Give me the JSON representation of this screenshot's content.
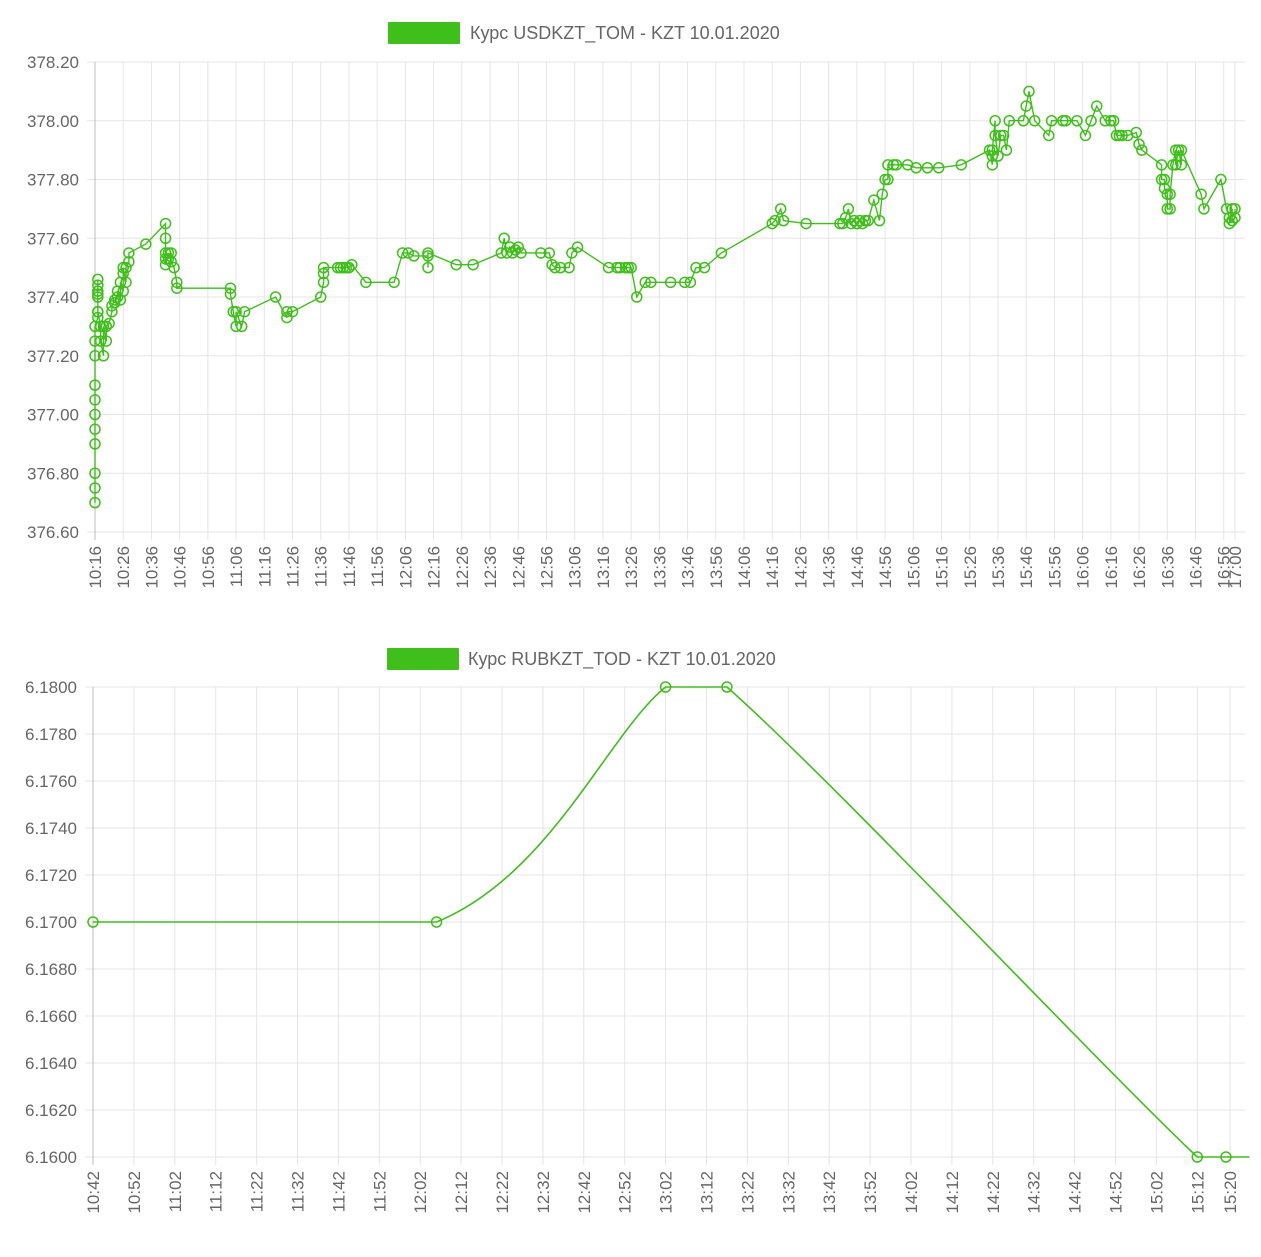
{
  "colors": {
    "series": "#3fbf1a",
    "grid": "#e5e5e5",
    "text": "#666666"
  },
  "chart_data": [
    {
      "type": "line",
      "legend_position": "top-center",
      "grid": true,
      "series": [
        {
          "name": "Курс USDKZT_TOM - KZT 10.01.2020"
        }
      ],
      "ylim": [
        376.6,
        378.2
      ],
      "y_ticks": [
        "378.20",
        "378.00",
        "377.80",
        "377.60",
        "377.40",
        "377.20",
        "377.00",
        "376.80",
        "376.60"
      ],
      "x_ticks": [
        "10:16",
        "10:26",
        "10:36",
        "10:46",
        "10:56",
        "11:06",
        "11:16",
        "11:26",
        "11:36",
        "11:46",
        "11:56",
        "12:06",
        "12:16",
        "12:26",
        "12:36",
        "12:46",
        "12:56",
        "13:06",
        "13:16",
        "13:26",
        "13:36",
        "13:46",
        "13:56",
        "14:06",
        "14:16",
        "14:26",
        "14:36",
        "14:46",
        "14:56",
        "15:06",
        "15:16",
        "15:26",
        "15:36",
        "15:46",
        "15:56",
        "16:06",
        "16:16",
        "16:26",
        "16:36",
        "16:46",
        "16:56",
        "17:00"
      ],
      "points": [
        [
          "10:16",
          376.7
        ],
        [
          "10:16",
          376.75
        ],
        [
          "10:16",
          376.8
        ],
        [
          "10:16",
          376.9
        ],
        [
          "10:16",
          376.95
        ],
        [
          "10:16",
          377.0
        ],
        [
          "10:16",
          377.05
        ],
        [
          "10:16",
          377.1
        ],
        [
          "10:16",
          377.2
        ],
        [
          "10:16",
          377.25
        ],
        [
          "10:16",
          377.3
        ],
        [
          "10:17",
          377.33
        ],
        [
          "10:17",
          377.35
        ],
        [
          "10:17",
          377.4
        ],
        [
          "10:17",
          377.42
        ],
        [
          "10:17",
          377.44
        ],
        [
          "10:17",
          377.46
        ],
        [
          "10:17",
          377.41
        ],
        [
          "10:17",
          377.35
        ],
        [
          "10:18",
          377.3
        ],
        [
          "10:18",
          377.25
        ],
        [
          "10:19",
          377.2
        ],
        [
          "10:19",
          377.3
        ],
        [
          "10:20",
          377.25
        ],
        [
          "10:20",
          377.3
        ],
        [
          "10:21",
          377.31
        ],
        [
          "10:22",
          377.35
        ],
        [
          "10:22",
          377.37
        ],
        [
          "10:23",
          377.39
        ],
        [
          "10:23",
          377.38
        ],
        [
          "10:24",
          377.4
        ],
        [
          "10:24",
          377.42
        ],
        [
          "10:25",
          377.39
        ],
        [
          "10:25",
          377.45
        ],
        [
          "10:26",
          377.42
        ],
        [
          "10:26",
          377.48
        ],
        [
          "10:26",
          377.5
        ],
        [
          "10:27",
          377.45
        ],
        [
          "10:27",
          377.5
        ],
        [
          "10:28",
          377.52
        ],
        [
          "10:28",
          377.55
        ],
        [
          "10:34",
          377.58
        ],
        [
          "10:41",
          377.65
        ],
        [
          "10:41",
          377.6
        ],
        [
          "10:41",
          377.55
        ],
        [
          "10:41",
          377.53
        ],
        [
          "10:41",
          377.51
        ],
        [
          "10:42",
          377.55
        ],
        [
          "10:42",
          377.53
        ],
        [
          "10:43",
          377.55
        ],
        [
          "10:43",
          377.52
        ],
        [
          "10:44",
          377.5
        ],
        [
          "10:45",
          377.45
        ],
        [
          "10:45",
          377.43
        ],
        [
          "11:04",
          377.43
        ],
        [
          "11:04",
          377.41
        ],
        [
          "11:05",
          377.35
        ],
        [
          "11:06",
          377.3
        ],
        [
          "11:06",
          377.35
        ],
        [
          "11:08",
          377.3
        ],
        [
          "11:09",
          377.35
        ],
        [
          "11:20",
          377.4
        ],
        [
          "11:24",
          377.33
        ],
        [
          "11:24",
          377.35
        ],
        [
          "11:26",
          377.35
        ],
        [
          "11:36",
          377.4
        ],
        [
          "11:37",
          377.45
        ],
        [
          "11:37",
          377.48
        ],
        [
          "11:37",
          377.5
        ],
        [
          "11:42",
          377.5
        ],
        [
          "11:43",
          377.5
        ],
        [
          "11:44",
          377.5
        ],
        [
          "11:45",
          377.5
        ],
        [
          "11:46",
          377.5
        ],
        [
          "11:47",
          377.51
        ],
        [
          "11:52",
          377.45
        ],
        [
          "12:02",
          377.45
        ],
        [
          "12:05",
          377.55
        ],
        [
          "12:07",
          377.55
        ],
        [
          "12:09",
          377.54
        ],
        [
          "12:14",
          377.54
        ],
        [
          "12:14",
          377.5
        ],
        [
          "12:14",
          377.55
        ],
        [
          "12:24",
          377.51
        ],
        [
          "12:30",
          377.51
        ],
        [
          "12:40",
          377.55
        ],
        [
          "12:41",
          377.6
        ],
        [
          "12:42",
          377.55
        ],
        [
          "12:43",
          377.57
        ],
        [
          "12:44",
          377.55
        ],
        [
          "12:45",
          377.56
        ],
        [
          "12:46",
          377.57
        ],
        [
          "12:47",
          377.55
        ],
        [
          "12:54",
          377.55
        ],
        [
          "12:57",
          377.55
        ],
        [
          "12:58",
          377.51
        ],
        [
          "12:59",
          377.5
        ],
        [
          "13:01",
          377.5
        ],
        [
          "13:04",
          377.5
        ],
        [
          "13:05",
          377.55
        ],
        [
          "13:07",
          377.57
        ],
        [
          "13:18",
          377.5
        ],
        [
          "13:21",
          377.5
        ],
        [
          "13:22",
          377.5
        ],
        [
          "13:24",
          377.5
        ],
        [
          "13:25",
          377.5
        ],
        [
          "13:26",
          377.5
        ],
        [
          "13:28",
          377.4
        ],
        [
          "13:31",
          377.45
        ],
        [
          "13:33",
          377.45
        ],
        [
          "13:40",
          377.45
        ],
        [
          "13:45",
          377.45
        ],
        [
          "13:47",
          377.45
        ],
        [
          "13:49",
          377.5
        ],
        [
          "13:52",
          377.5
        ],
        [
          "13:58",
          377.55
        ],
        [
          "14:16",
          377.65
        ],
        [
          "14:17",
          377.66
        ],
        [
          "14:19",
          377.7
        ],
        [
          "14:20",
          377.66
        ],
        [
          "14:28",
          377.65
        ],
        [
          "14:40",
          377.65
        ],
        [
          "14:41",
          377.65
        ],
        [
          "14:42",
          377.67
        ],
        [
          "14:43",
          377.7
        ],
        [
          "14:44",
          377.65
        ],
        [
          "14:45",
          377.66
        ],
        [
          "14:46",
          377.65
        ],
        [
          "14:47",
          377.66
        ],
        [
          "14:48",
          377.65
        ],
        [
          "14:49",
          377.66
        ],
        [
          "14:50",
          377.66
        ],
        [
          "14:52",
          377.73
        ],
        [
          "14:54",
          377.66
        ],
        [
          "14:55",
          377.75
        ],
        [
          "14:56",
          377.8
        ],
        [
          "14:57",
          377.8
        ],
        [
          "14:57",
          377.85
        ],
        [
          "14:59",
          377.85
        ],
        [
          "15:00",
          377.85
        ],
        [
          "15:04",
          377.85
        ],
        [
          "15:07",
          377.84
        ],
        [
          "15:11",
          377.84
        ],
        [
          "15:15",
          377.84
        ],
        [
          "15:23",
          377.85
        ],
        [
          "15:33",
          377.9
        ],
        [
          "15:34",
          377.85
        ],
        [
          "15:34",
          377.88
        ],
        [
          "15:34",
          377.9
        ],
        [
          "15:35",
          378.0
        ],
        [
          "15:35",
          377.95
        ],
        [
          "15:36",
          377.88
        ],
        [
          "15:37",
          377.95
        ],
        [
          "15:38",
          377.95
        ],
        [
          "15:39",
          377.9
        ],
        [
          "15:40",
          378.0
        ],
        [
          "15:45",
          378.0
        ],
        [
          "15:46",
          378.05
        ],
        [
          "15:47",
          378.1
        ],
        [
          "15:49",
          378.0
        ],
        [
          "15:54",
          377.95
        ],
        [
          "15:55",
          378.0
        ],
        [
          "15:59",
          378.0
        ],
        [
          "16:00",
          378.0
        ],
        [
          "16:04",
          378.0
        ],
        [
          "16:07",
          377.95
        ],
        [
          "16:09",
          378.0
        ],
        [
          "16:11",
          378.05
        ],
        [
          "16:14",
          378.0
        ],
        [
          "16:16",
          378.0
        ],
        [
          "16:17",
          378.0
        ],
        [
          "16:18",
          377.95
        ],
        [
          "16:19",
          377.95
        ],
        [
          "16:20",
          377.95
        ],
        [
          "16:22",
          377.95
        ],
        [
          "16:25",
          377.96
        ],
        [
          "16:26",
          377.92
        ],
        [
          "16:27",
          377.9
        ],
        [
          "16:34",
          377.85
        ],
        [
          "16:34",
          377.8
        ],
        [
          "16:35",
          377.8
        ],
        [
          "16:35",
          377.77
        ],
        [
          "16:36",
          377.75
        ],
        [
          "16:36",
          377.7
        ],
        [
          "16:37",
          377.7
        ],
        [
          "16:37",
          377.75
        ],
        [
          "16:38",
          377.85
        ],
        [
          "16:39",
          377.9
        ],
        [
          "16:39",
          377.85
        ],
        [
          "16:40",
          377.9
        ],
        [
          "16:41",
          377.85
        ],
        [
          "16:41",
          377.9
        ],
        [
          "16:48",
          377.75
        ],
        [
          "16:49",
          377.7
        ],
        [
          "16:55",
          377.8
        ],
        [
          "16:57",
          377.7
        ],
        [
          "16:58",
          377.67
        ],
        [
          "16:58",
          377.65
        ],
        [
          "16:59",
          377.7
        ],
        [
          "16:59",
          377.66
        ],
        [
          "17:00",
          377.67
        ],
        [
          "17:00",
          377.7
        ]
      ]
    },
    {
      "type": "line",
      "legend_position": "top-center",
      "grid": true,
      "series": [
        {
          "name": "Курс RUBKZT_TOD - KZT 10.01.2020"
        }
      ],
      "ylim": [
        6.16,
        6.18
      ],
      "y_ticks": [
        "6.1800",
        "6.1780",
        "6.1760",
        "6.1740",
        "6.1720",
        "6.1700",
        "6.1680",
        "6.1660",
        "6.1640",
        "6.1620",
        "6.1600"
      ],
      "x_ticks": [
        "10:42",
        "10:52",
        "11:02",
        "11:12",
        "11:22",
        "11:32",
        "11:42",
        "11:52",
        "12:02",
        "12:12",
        "12:22",
        "12:32",
        "12:42",
        "12:52",
        "13:02",
        "13:12",
        "13:22",
        "13:32",
        "13:42",
        "13:52",
        "14:02",
        "14:12",
        "14:22",
        "14:32",
        "14:42",
        "14:52",
        "15:02",
        "15:12",
        "15:20"
      ],
      "points": [
        [
          "10:42",
          6.17
        ],
        [
          "12:06",
          6.17
        ],
        [
          "13:02",
          6.18
        ],
        [
          "13:17",
          6.18
        ],
        [
          "15:12",
          6.16
        ],
        [
          "15:19",
          6.16
        ]
      ]
    }
  ]
}
